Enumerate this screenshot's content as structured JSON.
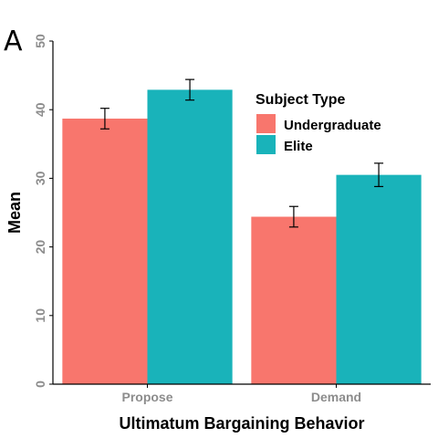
{
  "panel_label": "A",
  "colors": {
    "Undergraduate": "#F8766D",
    "Elite": "#19B3BA",
    "axis": "#000000",
    "tick_text": "#8c8c8c"
  },
  "chart_data": {
    "type": "bar",
    "title": "",
    "xlabel": "Ultimatum Bargaining Behavior",
    "ylabel": "Mean",
    "ylim": [
      0,
      50
    ],
    "yticks": [
      0,
      10,
      20,
      30,
      40,
      50
    ],
    "categories": [
      "Propose",
      "Demand"
    ],
    "series": [
      {
        "name": "Undergraduate",
        "values": [
          38.7,
          24.4
        ],
        "error": [
          1.5,
          1.5
        ]
      },
      {
        "name": "Elite",
        "values": [
          42.9,
          30.5
        ],
        "error": [
          1.5,
          1.7
        ]
      }
    ],
    "legend": {
      "title": "Subject Type",
      "placement": "top-right"
    },
    "grid": false
  }
}
